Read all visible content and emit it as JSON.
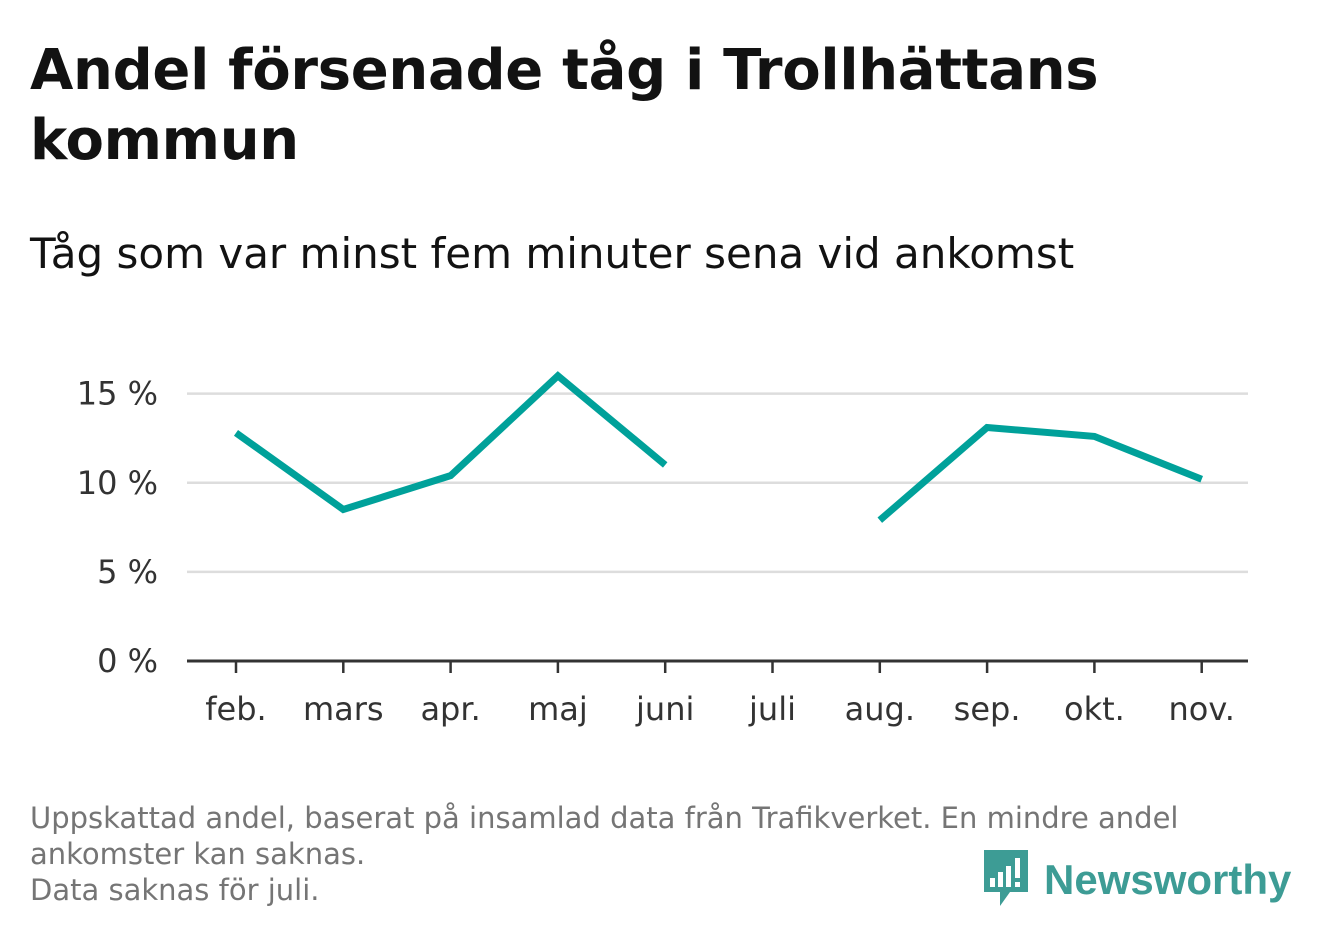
{
  "title": "Andel försenade tåg i Trollhättans kommun",
  "subtitle": "Tåg som var minst fem minuter sena vid ankomst",
  "chart_data": {
    "type": "line",
    "categories": [
      "feb.",
      "mars",
      "apr.",
      "maj",
      "juni",
      "juli",
      "aug.",
      "sep.",
      "okt.",
      "nov."
    ],
    "series": [
      {
        "values": [
          12.8,
          8.5,
          10.4,
          16.0,
          11.0,
          null,
          7.9,
          13.1,
          12.6,
          10.2
        ]
      }
    ],
    "yticks": [
      0,
      5,
      10,
      15
    ],
    "ytick_labels": [
      "0 %",
      "5 %",
      "10 %",
      "15 %"
    ],
    "ylim": [
      0,
      17
    ],
    "ylabel": "",
    "xlabel": "",
    "grid": true,
    "line_color": "#00a19a",
    "grid_color": "#dddddd",
    "axis_color": "#333333"
  },
  "footnote": {
    "lines": [
      "Uppskattad andel, baserat på insamlad data från Trafikverket. En mindre andel",
      "ankomster kan saknas.",
      "Data saknas för juli."
    ]
  },
  "brand": {
    "name": "Newsworthy",
    "icon": "newsworthy-logo-icon",
    "color": "#3d9c95"
  }
}
